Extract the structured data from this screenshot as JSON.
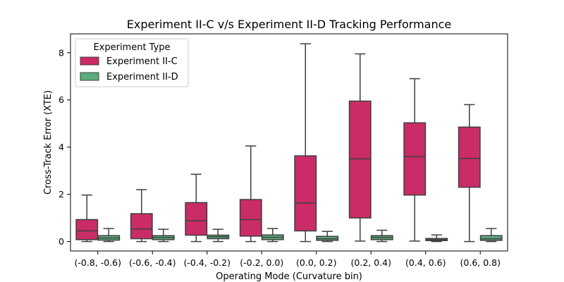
{
  "chart_data": {
    "type": "boxplot",
    "title": "Experiment II-C v/s Experiment II-D Tracking Performance",
    "xlabel": "Operating Mode (Curvature bin)",
    "ylabel": "Cross-Track Error (XTE)",
    "categories": [
      "(-0.8, -0.6)",
      "(-0.6, -0.4)",
      "(-0.4, -0.2)",
      "(-0.2, 0.0)",
      "(0.0, 0.2)",
      "(0.2, 0.4)",
      "(0.4, 0.6)",
      "(0.6, 0.8)"
    ],
    "ylim": [
      -0.4,
      8.8
    ],
    "yticks": [
      0,
      2,
      4,
      6,
      8
    ],
    "legend": {
      "title": "Experiment Type",
      "placement": "top-left"
    },
    "series": [
      {
        "name": "Experiment II-C",
        "color": "#c92c66",
        "boxes": [
          {
            "whisker_low": 0.0,
            "q1": 0.08,
            "median": 0.45,
            "q3": 0.93,
            "whisker_high": 1.97
          },
          {
            "whisker_low": 0.0,
            "q1": 0.12,
            "median": 0.53,
            "q3": 1.18,
            "whisker_high": 2.2
          },
          {
            "whisker_low": 0.0,
            "q1": 0.27,
            "median": 0.88,
            "q3": 1.65,
            "whisker_high": 2.85
          },
          {
            "whisker_low": 0.0,
            "q1": 0.23,
            "median": 0.93,
            "q3": 1.78,
            "whisker_high": 4.05
          },
          {
            "whisker_low": 0.0,
            "q1": 0.45,
            "median": 1.63,
            "q3": 3.63,
            "whisker_high": 8.38
          },
          {
            "whisker_low": 0.02,
            "q1": 1.0,
            "median": 3.5,
            "q3": 5.95,
            "whisker_high": 7.95
          },
          {
            "whisker_low": 0.02,
            "q1": 1.97,
            "median": 3.6,
            "q3": 5.03,
            "whisker_high": 6.9
          },
          {
            "whisker_low": 0.0,
            "q1": 2.3,
            "median": 3.52,
            "q3": 4.85,
            "whisker_high": 5.8
          }
        ]
      },
      {
        "name": "Experiment II-D",
        "color": "#5aad7e",
        "boxes": [
          {
            "whisker_low": 0.0,
            "q1": 0.06,
            "median": 0.15,
            "q3": 0.25,
            "whisker_high": 0.55
          },
          {
            "whisker_low": 0.0,
            "q1": 0.08,
            "median": 0.17,
            "q3": 0.25,
            "whisker_high": 0.52
          },
          {
            "whisker_low": 0.0,
            "q1": 0.12,
            "median": 0.2,
            "q3": 0.27,
            "whisker_high": 0.52
          },
          {
            "whisker_low": 0.0,
            "q1": 0.08,
            "median": 0.18,
            "q3": 0.28,
            "whisker_high": 0.55
          },
          {
            "whisker_low": 0.0,
            "q1": 0.05,
            "median": 0.12,
            "q3": 0.22,
            "whisker_high": 0.43
          },
          {
            "whisker_low": 0.0,
            "q1": 0.08,
            "median": 0.17,
            "q3": 0.25,
            "whisker_high": 0.48
          },
          {
            "whisker_low": 0.0,
            "q1": 0.04,
            "median": 0.08,
            "q3": 0.13,
            "whisker_high": 0.28
          },
          {
            "whisker_low": 0.0,
            "q1": 0.05,
            "median": 0.12,
            "q3": 0.25,
            "whisker_high": 0.55
          }
        ]
      }
    ]
  }
}
